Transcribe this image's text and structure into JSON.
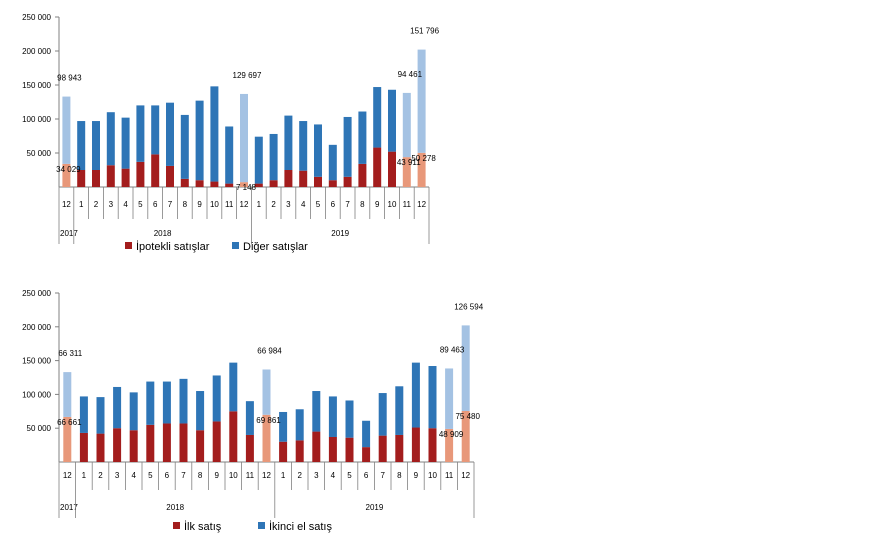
{
  "chart_data": [
    {
      "type": "bar",
      "stacked": true,
      "ylim": [
        0,
        250000
      ],
      "yticks": [
        "250 000",
        "200 000",
        "150 000",
        "100 000",
        "50 000"
      ],
      "categories": [
        "12",
        "1",
        "2",
        "3",
        "4",
        "5",
        "6",
        "7",
        "8",
        "9",
        "10",
        "11",
        "12",
        "1",
        "2",
        "3",
        "4",
        "5",
        "6",
        "7",
        "8",
        "9",
        "10",
        "11",
        "12"
      ],
      "year_labels": [
        {
          "text": "2017",
          "start": 0,
          "end": 0
        },
        {
          "text": "2018",
          "start": 1,
          "end": 12
        },
        {
          "text": "2019",
          "start": 13,
          "end": 24
        }
      ],
      "series": [
        {
          "name": "İpotekli satışlar",
          "color": "#a31d1d",
          "highlight_color": "#e8987a",
          "values": [
            34029,
            25000,
            25000,
            32000,
            27000,
            37000,
            48000,
            31000,
            12000,
            10000,
            8000,
            5000,
            7148,
            5000,
            10000,
            25000,
            24000,
            15000,
            10000,
            15000,
            34000,
            58000,
            52000,
            43911,
            50278
          ]
        },
        {
          "name": "Diğer satışlar",
          "color": "#2e75b6",
          "highlight_color": "#a4c2e3",
          "values": [
            98943,
            72000,
            72000,
            78000,
            75000,
            83000,
            72000,
            93000,
            94000,
            117000,
            140000,
            84000,
            129697,
            69000,
            68000,
            80000,
            73000,
            77000,
            52000,
            88000,
            77000,
            89000,
            91000,
            94461,
            151796
          ]
        }
      ],
      "highlight_indices": [
        0,
        12,
        23,
        24
      ],
      "data_labels": [
        {
          "index": 0,
          "series": 1,
          "text": "98 943"
        },
        {
          "index": 0,
          "series": 0,
          "text": "34 029"
        },
        {
          "index": 12,
          "series": 1,
          "text": "129 697"
        },
        {
          "index": 12,
          "series": 0,
          "text": "7 148"
        },
        {
          "index": 23,
          "series": 1,
          "text": "94 461"
        },
        {
          "index": 23,
          "series": 0,
          "text": "43 911"
        },
        {
          "index": 24,
          "series": 1,
          "text": "151 796"
        },
        {
          "index": 24,
          "series": 0,
          "text": "50 278"
        }
      ]
    },
    {
      "type": "bar",
      "stacked": true,
      "ylim": [
        0,
        250000
      ],
      "yticks": [
        "250 000",
        "200 000",
        "150 000",
        "100 000",
        "50 000"
      ],
      "categories": [
        "12",
        "1",
        "2",
        "3",
        "4",
        "5",
        "6",
        "7",
        "8",
        "9",
        "10",
        "11",
        "12",
        "1",
        "2",
        "3",
        "4",
        "5",
        "6",
        "7",
        "8",
        "9",
        "10",
        "11",
        "12"
      ],
      "year_labels": [
        {
          "text": "2017",
          "start": 0,
          "end": 0
        },
        {
          "text": "2018",
          "start": 1,
          "end": 12
        },
        {
          "text": "2019",
          "start": 13,
          "end": 24
        }
      ],
      "series": [
        {
          "name": "İlk satış",
          "color": "#a31d1d",
          "highlight_color": "#e8987a",
          "values": [
            66661,
            43000,
            42000,
            50000,
            47000,
            55000,
            57000,
            57000,
            47000,
            60000,
            75000,
            40000,
            69861,
            30000,
            32000,
            45000,
            37000,
            36000,
            22000,
            39000,
            40000,
            51000,
            50000,
            48909,
            75480
          ]
        },
        {
          "name": "İkinci el satış",
          "color": "#2e75b6",
          "highlight_color": "#a4c2e3",
          "values": [
            66311,
            54000,
            54000,
            61000,
            56000,
            64000,
            62000,
            66000,
            58000,
            68000,
            72000,
            50000,
            66984,
            44000,
            46000,
            60000,
            60000,
            55000,
            39000,
            63000,
            72000,
            96000,
            92000,
            89463,
            126594
          ]
        }
      ],
      "highlight_indices": [
        0,
        12,
        23,
        24
      ],
      "data_labels": [
        {
          "index": 0,
          "series": 1,
          "text": "66 311"
        },
        {
          "index": 0,
          "series": 0,
          "text": "66 661"
        },
        {
          "index": 12,
          "series": 1,
          "text": "66 984"
        },
        {
          "index": 12,
          "series": 0,
          "text": "69 861"
        },
        {
          "index": 23,
          "series": 1,
          "text": "89 463"
        },
        {
          "index": 23,
          "series": 0,
          "text": "48 909"
        },
        {
          "index": 24,
          "series": 1,
          "text": "126 594"
        },
        {
          "index": 24,
          "series": 0,
          "text": "75 480"
        }
      ]
    }
  ]
}
